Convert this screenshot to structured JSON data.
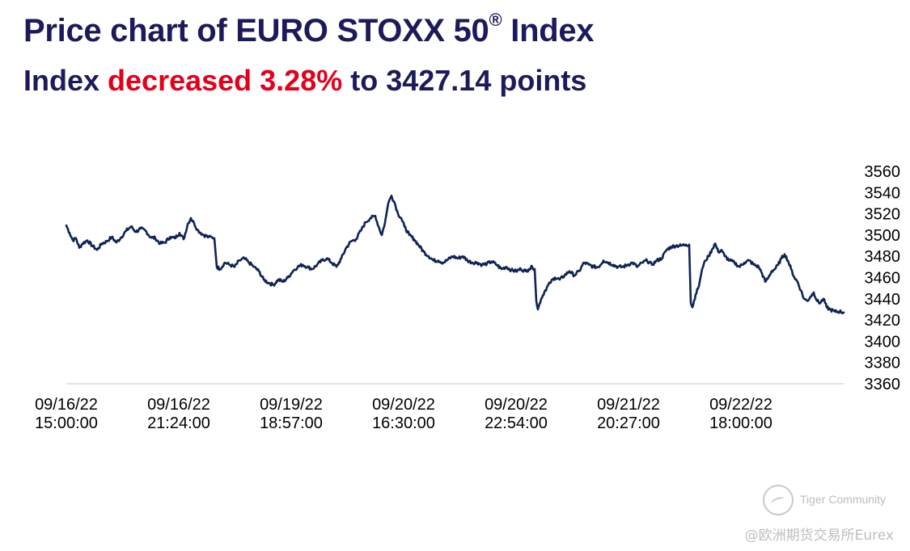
{
  "title": {
    "main": "Price chart of EURO STOXX 50",
    "mark": "®",
    "suffix": " Index"
  },
  "subtitle": {
    "prefix": "Index ",
    "highlight": "decreased 3.28%",
    "suffix": " to 3427.14 points"
  },
  "colors": {
    "title": "#1d1a5b",
    "highlight": "#e2001a",
    "line": "#0f2356",
    "axis": "#d9d9d9"
  },
  "watermark": {
    "icon": "tiger-logo-icon",
    "text": "Tiger Community"
  },
  "source": "@欧洲期货交易所Eurex",
  "chart_data": {
    "type": "line",
    "title": "Price chart of EURO STOXX 50® Index",
    "ylim": [
      3360,
      3560
    ],
    "yticks": [
      3560,
      3540,
      3520,
      3500,
      3480,
      3460,
      3440,
      3420,
      3400,
      3380,
      3360
    ],
    "y_axis_position": "right",
    "grid": false,
    "xticks": [
      {
        "index": 0,
        "date": "09/16/22",
        "time": "15:00:00"
      },
      {
        "index": 139,
        "date": "09/16/22",
        "time": "21:24:00"
      },
      {
        "index": 278,
        "date": "09/19/22",
        "time": "18:57:00"
      },
      {
        "index": 417,
        "date": "09/20/22",
        "time": "16:30:00"
      },
      {
        "index": 556,
        "date": "09/20/22",
        "time": "22:54:00"
      },
      {
        "index": 695,
        "date": "09/21/22",
        "time": "20:27:00"
      },
      {
        "index": 834,
        "date": "09/22/22",
        "time": "18:00:00"
      }
    ],
    "n_points": 962,
    "series": [
      {
        "points": [
          [
            0,
            3509
          ],
          [
            4,
            3502
          ],
          [
            8,
            3495
          ],
          [
            12,
            3497
          ],
          [
            16,
            3488
          ],
          [
            20,
            3492
          ],
          [
            26,
            3495
          ],
          [
            32,
            3490
          ],
          [
            38,
            3486
          ],
          [
            44,
            3492
          ],
          [
            50,
            3494
          ],
          [
            56,
            3498
          ],
          [
            62,
            3493
          ],
          [
            68,
            3498
          ],
          [
            74,
            3504
          ],
          [
            80,
            3508
          ],
          [
            86,
            3503
          ],
          [
            92,
            3506
          ],
          [
            98,
            3504
          ],
          [
            104,
            3498
          ],
          [
            110,
            3497
          ],
          [
            116,
            3492
          ],
          [
            122,
            3493
          ],
          [
            128,
            3498
          ],
          [
            134,
            3497
          ],
          [
            140,
            3502
          ],
          [
            145,
            3496
          ],
          [
            150,
            3510
          ],
          [
            154,
            3516
          ],
          [
            158,
            3511
          ],
          [
            162,
            3505
          ],
          [
            166,
            3502
          ],
          [
            170,
            3500
          ],
          [
            176,
            3498
          ],
          [
            180,
            3498
          ],
          [
            183,
            3497
          ],
          [
            186,
            3470
          ],
          [
            190,
            3468
          ],
          [
            196,
            3474
          ],
          [
            202,
            3472
          ],
          [
            208,
            3470
          ],
          [
            214,
            3476
          ],
          [
            220,
            3478
          ],
          [
            226,
            3474
          ],
          [
            232,
            3470
          ],
          [
            238,
            3466
          ],
          [
            244,
            3458
          ],
          [
            250,
            3455
          ],
          [
            256,
            3453
          ],
          [
            262,
            3458
          ],
          [
            268,
            3456
          ],
          [
            274,
            3460
          ],
          [
            280,
            3466
          ],
          [
            286,
            3470
          ],
          [
            292,
            3472
          ],
          [
            298,
            3470
          ],
          [
            304,
            3468
          ],
          [
            310,
            3472
          ],
          [
            316,
            3476
          ],
          [
            322,
            3478
          ],
          [
            328,
            3474
          ],
          [
            334,
            3470
          ],
          [
            340,
            3478
          ],
          [
            346,
            3488
          ],
          [
            352,
            3494
          ],
          [
            358,
            3496
          ],
          [
            364,
            3504
          ],
          [
            370,
            3512
          ],
          [
            376,
            3516
          ],
          [
            382,
            3518
          ],
          [
            386,
            3508
          ],
          [
            390,
            3500
          ],
          [
            394,
            3512
          ],
          [
            398,
            3530
          ],
          [
            402,
            3537
          ],
          [
            406,
            3530
          ],
          [
            410,
            3520
          ],
          [
            414,
            3516
          ],
          [
            418,
            3508
          ],
          [
            424,
            3500
          ],
          [
            430,
            3496
          ],
          [
            436,
            3490
          ],
          [
            442,
            3484
          ],
          [
            448,
            3480
          ],
          [
            454,
            3476
          ],
          [
            460,
            3476
          ],
          [
            466,
            3474
          ],
          [
            472,
            3477
          ],
          [
            478,
            3480
          ],
          [
            484,
            3478
          ],
          [
            490,
            3480
          ],
          [
            496,
            3476
          ],
          [
            502,
            3474
          ],
          [
            508,
            3474
          ],
          [
            514,
            3472
          ],
          [
            520,
            3473
          ],
          [
            526,
            3475
          ],
          [
            532,
            3472
          ],
          [
            538,
            3468
          ],
          [
            544,
            3470
          ],
          [
            550,
            3467
          ],
          [
            556,
            3466
          ],
          [
            562,
            3468
          ],
          [
            568,
            3466
          ],
          [
            572,
            3468
          ],
          [
            576,
            3470
          ],
          [
            579,
            3468
          ],
          [
            581,
            3438
          ],
          [
            583,
            3430
          ],
          [
            587,
            3440
          ],
          [
            592,
            3448
          ],
          [
            598,
            3455
          ],
          [
            604,
            3460
          ],
          [
            610,
            3458
          ],
          [
            616,
            3462
          ],
          [
            622,
            3466
          ],
          [
            628,
            3462
          ],
          [
            634,
            3466
          ],
          [
            640,
            3474
          ],
          [
            646,
            3472
          ],
          [
            652,
            3470
          ],
          [
            658,
            3470
          ],
          [
            664,
            3476
          ],
          [
            670,
            3474
          ],
          [
            676,
            3472
          ],
          [
            682,
            3470
          ],
          [
            688,
            3470
          ],
          [
            694,
            3472
          ],
          [
            700,
            3474
          ],
          [
            706,
            3470
          ],
          [
            712,
            3474
          ],
          [
            718,
            3476
          ],
          [
            724,
            3472
          ],
          [
            730,
            3476
          ],
          [
            736,
            3478
          ],
          [
            742,
            3486
          ],
          [
            748,
            3489
          ],
          [
            754,
            3490
          ],
          [
            760,
            3490
          ],
          [
            766,
            3491
          ],
          [
            770,
            3491
          ],
          [
            772,
            3436
          ],
          [
            774,
            3432
          ],
          [
            778,
            3444
          ],
          [
            782,
            3452
          ],
          [
            786,
            3468
          ],
          [
            790,
            3476
          ],
          [
            794,
            3480
          ],
          [
            798,
            3486
          ],
          [
            802,
            3492
          ],
          [
            806,
            3484
          ],
          [
            810,
            3486
          ],
          [
            814,
            3480
          ],
          [
            820,
            3476
          ],
          [
            826,
            3474
          ],
          [
            832,
            3470
          ],
          [
            838,
            3474
          ],
          [
            844,
            3476
          ],
          [
            850,
            3472
          ],
          [
            856,
            3470
          ],
          [
            860,
            3464
          ],
          [
            864,
            3456
          ],
          [
            868,
            3460
          ],
          [
            872,
            3466
          ],
          [
            876,
            3468
          ],
          [
            880,
            3472
          ],
          [
            884,
            3478
          ],
          [
            888,
            3482
          ],
          [
            892,
            3476
          ],
          [
            896,
            3468
          ],
          [
            900,
            3460
          ],
          [
            904,
            3456
          ],
          [
            908,
            3448
          ],
          [
            912,
            3440
          ],
          [
            916,
            3438
          ],
          [
            920,
            3442
          ],
          [
            924,
            3446
          ],
          [
            928,
            3438
          ],
          [
            932,
            3436
          ],
          [
            936,
            3440
          ],
          [
            940,
            3432
          ],
          [
            944,
            3430
          ],
          [
            950,
            3428
          ],
          [
            956,
            3428
          ],
          [
            961,
            3427.14
          ]
        ]
      }
    ]
  }
}
